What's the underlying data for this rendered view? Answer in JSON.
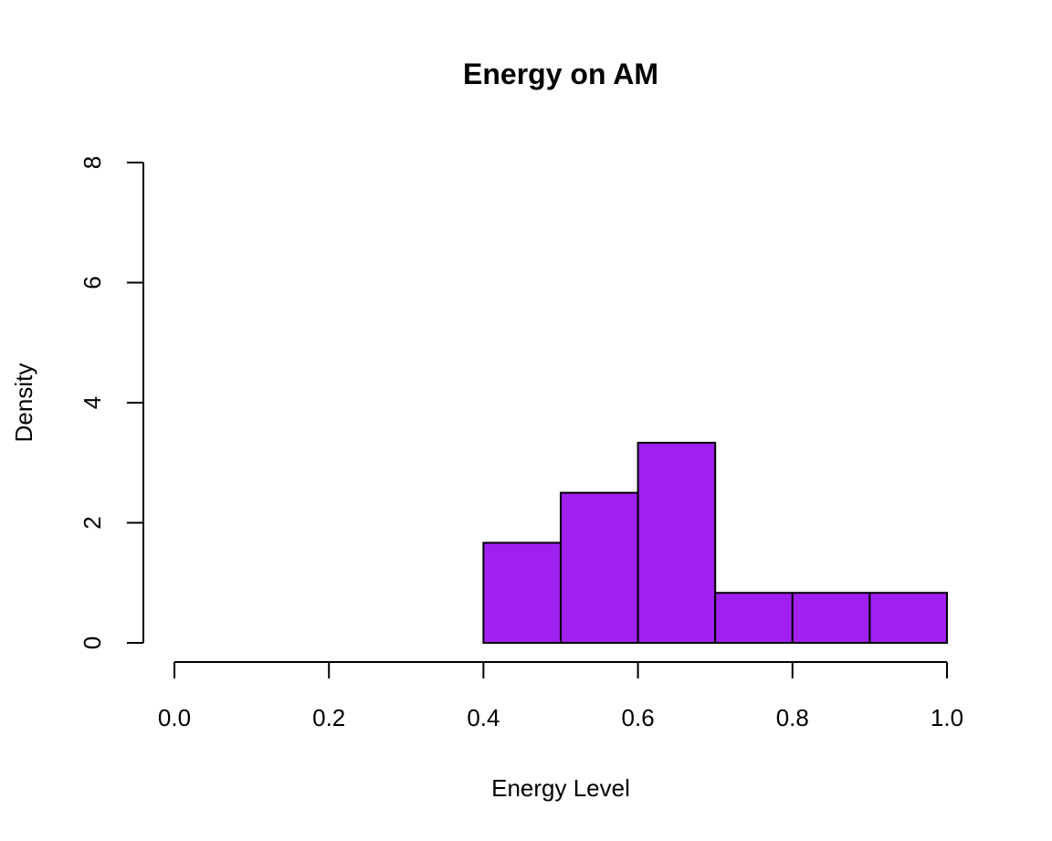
{
  "chart_data": {
    "type": "bar",
    "title": "Energy on AM",
    "xlabel": "Energy Level",
    "ylabel": "Density",
    "xlim": [
      0.0,
      1.0
    ],
    "ylim": [
      0,
      8
    ],
    "x_ticks": [
      "0.0",
      "0.2",
      "0.4",
      "0.6",
      "0.8",
      "1.0"
    ],
    "y_ticks": [
      "0",
      "2",
      "4",
      "6",
      "8"
    ],
    "bin_edges": [
      0.4,
      0.5,
      0.6,
      0.7,
      0.8,
      0.9,
      1.0
    ],
    "values": [
      1.667,
      2.5,
      3.333,
      0.833,
      0.833,
      0.833
    ],
    "bar_color": "#A020F0",
    "grid": false,
    "legend": "none"
  }
}
